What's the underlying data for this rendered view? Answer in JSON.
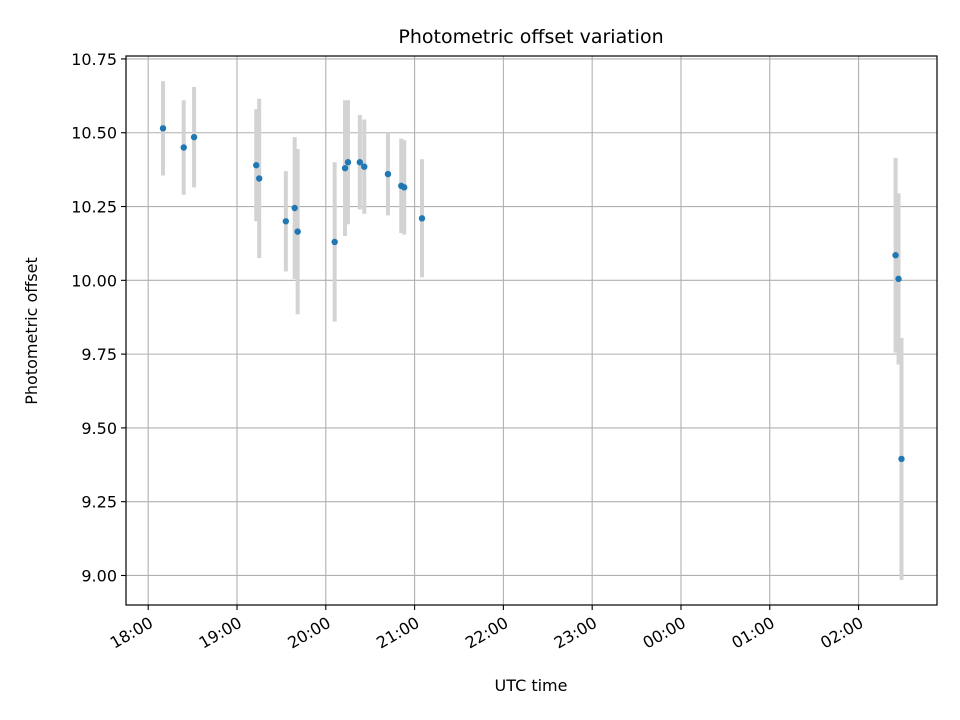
{
  "chart_data": {
    "type": "scatter",
    "title": "Photometric offset variation",
    "xlabel": "UTC time",
    "ylabel": "Photometric offset",
    "x_ticks": [
      "18:00",
      "19:00",
      "20:00",
      "21:00",
      "22:00",
      "23:00",
      "00:00",
      "01:00",
      "02:00"
    ],
    "y_ticks": [
      "9.00",
      "9.25",
      "9.50",
      "9.75",
      "10.00",
      "10.25",
      "10.50",
      "10.75"
    ],
    "xlim": [
      "17:45",
      "02:53"
    ],
    "ylim": [
      8.9,
      10.76
    ],
    "grid": true,
    "colors": {
      "point": "#1f77b4",
      "errorbar": "#d3d3d3",
      "grid": "#b0b0b0"
    },
    "points": [
      {
        "x": "18:10",
        "y": 10.515,
        "err": 0.16
      },
      {
        "x": "18:24",
        "y": 10.45,
        "err": 0.16
      },
      {
        "x": "18:31",
        "y": 10.485,
        "err": 0.17
      },
      {
        "x": "19:13",
        "y": 10.39,
        "err": 0.19
      },
      {
        "x": "19:15",
        "y": 10.345,
        "err": 0.27
      },
      {
        "x": "19:33",
        "y": 10.2,
        "err": 0.17
      },
      {
        "x": "19:39",
        "y": 10.245,
        "err": 0.24
      },
      {
        "x": "19:41",
        "y": 10.165,
        "err": 0.28
      },
      {
        "x": "20:06",
        "y": 10.13,
        "err": 0.27
      },
      {
        "x": "20:13",
        "y": 10.38,
        "err": 0.23
      },
      {
        "x": "20:15",
        "y": 10.4,
        "err": 0.21
      },
      {
        "x": "20:23",
        "y": 10.4,
        "err": 0.16
      },
      {
        "x": "20:26",
        "y": 10.385,
        "err": 0.16
      },
      {
        "x": "20:42",
        "y": 10.36,
        "err": 0.14
      },
      {
        "x": "20:51",
        "y": 10.32,
        "err": 0.16
      },
      {
        "x": "20:53",
        "y": 10.315,
        "err": 0.16
      },
      {
        "x": "21:05",
        "y": 10.21,
        "err": 0.2
      },
      {
        "x": "02:25",
        "y": 10.085,
        "err": 0.33
      },
      {
        "x": "02:27",
        "y": 10.005,
        "err": 0.29
      },
      {
        "x": "02:29",
        "y": 9.395,
        "err": 0.41
      }
    ]
  }
}
